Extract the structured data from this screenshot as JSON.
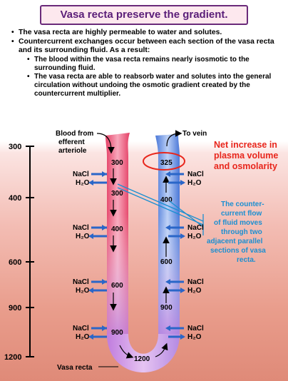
{
  "title": "Vasa recta preserve the gradient.",
  "bullets": {
    "b1": "The vasa recta are highly permeable to water and solutes.",
    "b2": "Countercurrent exchanges occur between each section of the vasa recta and its surrounding fluid. As a result:",
    "sub1": "The blood within the vasa recta remains nearly isosmotic to the surrounding fluid.",
    "sub2": "The vasa recta are able to reabsorb water and solutes into the general circulation without undoing the osmotic gradient created by the countercurrent multiplier."
  },
  "axis": {
    "ticks": [
      "300",
      "400",
      "600",
      "900",
      "1200"
    ]
  },
  "labels": {
    "blood_from": "Blood from",
    "efferent": "efferent",
    "arteriole": "arteriole",
    "to_vein": "To vein",
    "vasa_recta": "Vasa recta"
  },
  "net_increase": {
    "line1": "Net increase in",
    "line2": "plasma volume",
    "line3": "and osmolarity"
  },
  "countercurrent_note": {
    "line1": "The counter-",
    "line2": "current flow",
    "line3": "of fluid moves",
    "line4": "through two",
    "line5": "adjacent parallel",
    "line6": "sections of vasa",
    "line7": "recta."
  },
  "descending_values": [
    "300",
    "300",
    "400",
    "600",
    "900"
  ],
  "ascending_values": [
    "325",
    "400",
    "600",
    "900"
  ],
  "bottom_value": "1200",
  "exchange": {
    "nacl": "NaCl",
    "h2o": "H₂O"
  },
  "colors": {
    "title_text": "#5a1d78",
    "net_increase_text": "#e8261c",
    "note_text": "#1a8fd1",
    "arrow_blue": "#2a66c8",
    "descending_limb": "#e8355a",
    "ascending_limb": "#3c6fd4"
  }
}
